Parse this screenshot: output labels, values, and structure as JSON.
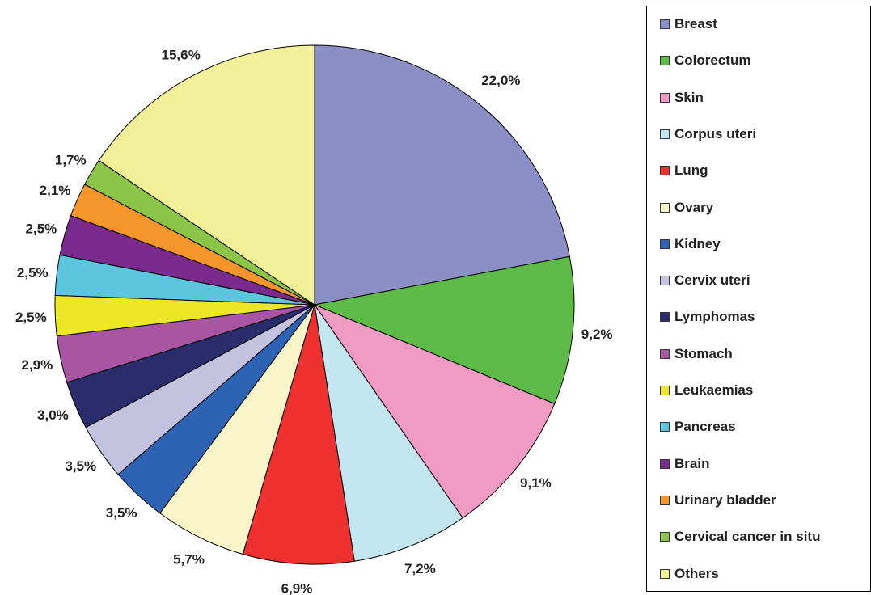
{
  "chart_data": {
    "type": "pie",
    "legend_position": "right",
    "slices": [
      {
        "label": "Breast",
        "value": 22.0,
        "value_label": "22,0%",
        "color": "#8c8fc6"
      },
      {
        "label": "Colorectum",
        "value": 9.2,
        "value_label": "9,2%",
        "color": "#5dba47"
      },
      {
        "label": "Skin",
        "value": 9.1,
        "value_label": "9,1%",
        "color": "#f19ac4"
      },
      {
        "label": "Corpus uteri",
        "value": 7.2,
        "value_label": "7,2%",
        "color": "#c4e6f0"
      },
      {
        "label": "Lung",
        "value": 6.9,
        "value_label": "6,9%",
        "color": "#ee302e"
      },
      {
        "label": "Ovary",
        "value": 5.7,
        "value_label": "5,7%",
        "color": "#f8f5c8"
      },
      {
        "label": "Kidney",
        "value": 3.5,
        "value_label": "3,5%",
        "color": "#2e63b3"
      },
      {
        "label": "Cervix uteri",
        "value": 3.5,
        "value_label": "3,5%",
        "color": "#c3c3e0"
      },
      {
        "label": "Lymphomas",
        "value": 3.0,
        "value_label": "3,0%",
        "color": "#2a2c6c"
      },
      {
        "label": "Stomach",
        "value": 2.9,
        "value_label": "2,9%",
        "color": "#a855a3"
      },
      {
        "label": "Leukaemias",
        "value": 2.5,
        "value_label": "2,5%",
        "color": "#ede826"
      },
      {
        "label": "Pancreas",
        "value": 2.5,
        "value_label": "2,5%",
        "color": "#5bc6dd"
      },
      {
        "label": "Brain",
        "value": 2.5,
        "value_label": "2,5%",
        "color": "#7b2a8e"
      },
      {
        "label": "Urinary bladder",
        "value": 2.1,
        "value_label": "2,1%",
        "color": "#f5952a"
      },
      {
        "label": "Cervical cancer in situ",
        "value": 1.7,
        "value_label": "1,7%",
        "color": "#8cc448"
      },
      {
        "label": "Others",
        "value": 15.6,
        "value_label": "15,6%",
        "color": "#f3f09a"
      }
    ]
  }
}
